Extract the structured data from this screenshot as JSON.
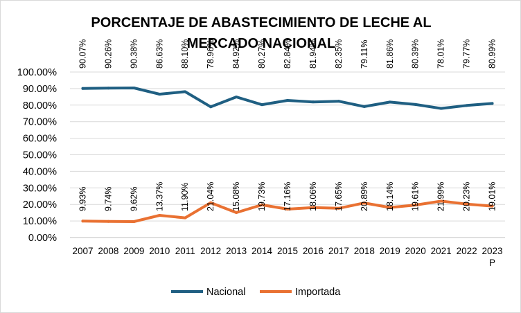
{
  "chart_data": {
    "type": "line",
    "title": "PORCENTAJE DE ABASTECIMIENTO DE LECHE AL MERCADO NACIONAL",
    "title_lines": [
      "PORCENTAJE DE ABASTECIMIENTO DE LECHE AL",
      "MERCADO NACIONAL"
    ],
    "categories": [
      "2007",
      "2008",
      "2009",
      "2010",
      "2011",
      "2012",
      "2013",
      "2014",
      "2015",
      "2016",
      "2017",
      "2018",
      "2019",
      "2020",
      "2021",
      "2022",
      "2023\nP"
    ],
    "yticks": [
      "0.00%",
      "10.00%",
      "20.00%",
      "30.00%",
      "40.00%",
      "50.00%",
      "60.00%",
      "70.00%",
      "80.00%",
      "90.00%",
      "100.00%"
    ],
    "ylim": [
      0,
      100
    ],
    "grid": true,
    "legend_position": "bottom",
    "series": [
      {
        "name": "Nacional",
        "color": "#1f5f82",
        "values": [
          90.07,
          90.26,
          90.38,
          86.63,
          88.1,
          78.96,
          84.92,
          80.27,
          82.84,
          81.94,
          82.35,
          79.11,
          81.86,
          80.39,
          78.01,
          79.77,
          80.99
        ],
        "labels": [
          "90.07%",
          "90.26%",
          "90.38%",
          "86.63%",
          "88.10%",
          "78.96%",
          "84.92%",
          "80.27%",
          "82.84%",
          "81.94%",
          "82.35%",
          "79.11%",
          "81.86%",
          "80.39%",
          "78.01%",
          "79.77%",
          "80.99%"
        ]
      },
      {
        "name": "Importada",
        "color": "#e97132",
        "values": [
          9.93,
          9.74,
          9.62,
          13.37,
          11.9,
          21.04,
          15.08,
          19.73,
          17.16,
          18.06,
          17.65,
          20.89,
          18.14,
          19.61,
          21.99,
          20.23,
          19.01
        ],
        "labels": [
          "9.93%",
          "9.74%",
          "9.62%",
          "13.37%",
          "11.90%",
          "21.04%",
          "15.08%",
          "19.73%",
          "17.16%",
          "18.06%",
          "17.65%",
          "20.89%",
          "18.14%",
          "19.61%",
          "21.99%",
          "20.23%",
          "19.01%"
        ]
      }
    ]
  }
}
